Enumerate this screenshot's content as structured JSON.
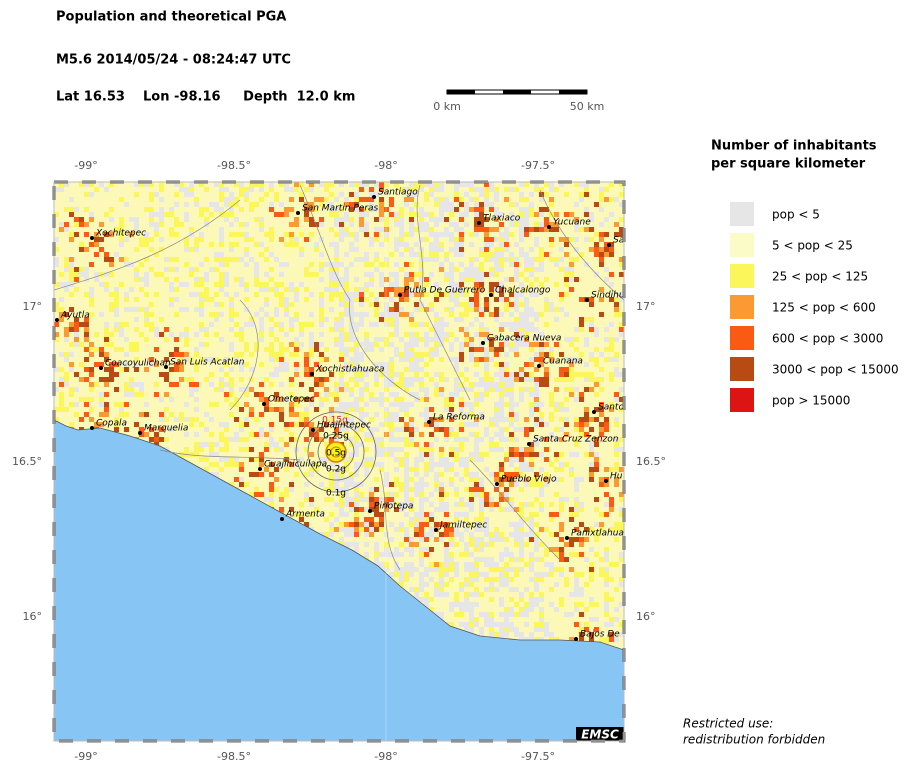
{
  "header": {
    "title": "Population and theoretical PGA",
    "event": "M5.6  2014/05/24 - 08:24:47 UTC",
    "location": "Lat 16.53    Lon -98.16     Depth  12.0 km"
  },
  "scale": {
    "start": "0 km",
    "end": "50 km"
  },
  "map": {
    "lon_ticks": [
      "-99°",
      "-98.5°",
      "-98°",
      "-97.5°"
    ],
    "lat_ticks": [
      "17°",
      "16.5°",
      "16°"
    ],
    "cities": [
      "Santiago",
      "San Martin Peras",
      "Xochitepec",
      "Tlaxiaco",
      "Yucuane",
      "Sa",
      "Putla De Guerrero",
      "Chalcalongo",
      "Sindihu",
      "Ayutla",
      "Cabacera Nueva",
      "Coacoyulichan",
      "San Luis Acatlan",
      "Cuanana",
      "Xochistlahuaca",
      "Ometepec",
      "Santo",
      "La Reforma",
      "Copala",
      "Marquelia",
      "Huajintepec",
      "Santa Cruz Zenzon",
      "Hu",
      "Cuajinicuilapa",
      "Pueblo Viejo",
      "Pinotepa",
      "Armenta",
      "Jamiltepec",
      "Panixtlahuac",
      "Bajos De"
    ],
    "pga_labels": [
      "0.15g",
      "0.25g",
      "0.5g",
      "0.2g",
      "0.1g"
    ],
    "credit": "EMSC"
  },
  "legend": {
    "title": [
      "Number of inhabitants",
      "per square kilometer"
    ],
    "entries": [
      {
        "label": "pop < 5",
        "color": "#e6e6e6"
      },
      {
        "label": "5 < pop < 25",
        "color": "#fbfbc8"
      },
      {
        "label": "25 < pop < 125",
        "color": "#fbf75a"
      },
      {
        "label": "125 < pop < 600",
        "color": "#fb9a32"
      },
      {
        "label": "600 < pop < 3000",
        "color": "#fb5a14"
      },
      {
        "label": "3000 < pop < 15000",
        "color": "#b84a14"
      },
      {
        "label": "pop > 15000",
        "color": "#dc1414"
      }
    ]
  },
  "notice": [
    "Restricted use:",
    "redistribution forbidden"
  ]
}
